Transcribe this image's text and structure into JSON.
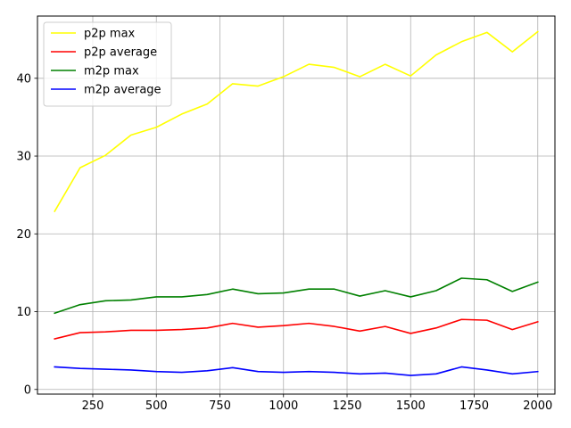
{
  "chart_data": {
    "type": "line",
    "title": "",
    "xlabel": "",
    "ylabel": "",
    "xlim": [
      32.5,
      2067.5
    ],
    "ylim": [
      -0.6,
      48.0
    ],
    "grid": true,
    "legend_position": "top-left",
    "x_ticks": [
      250,
      500,
      750,
      1000,
      1250,
      1500,
      1750,
      2000
    ],
    "y_ticks": [
      0,
      10,
      20,
      30,
      40
    ],
    "x": [
      100,
      200,
      300,
      400,
      500,
      600,
      700,
      800,
      900,
      1000,
      1100,
      1200,
      1300,
      1400,
      1500,
      1600,
      1700,
      1800,
      1900,
      2000
    ],
    "series": [
      {
        "name": "p2p max",
        "color": "#ffff00",
        "values": [
          22.9,
          28.5,
          30.1,
          32.7,
          33.7,
          35.4,
          36.7,
          39.3,
          39.0,
          40.2,
          41.8,
          41.4,
          40.2,
          41.8,
          40.3,
          43.0,
          44.7,
          45.9,
          43.4,
          46.0
        ]
      },
      {
        "name": "p2p average",
        "color": "#ff0000",
        "values": [
          6.5,
          7.3,
          7.4,
          7.6,
          7.6,
          7.7,
          7.9,
          8.5,
          8.0,
          8.2,
          8.5,
          8.1,
          7.5,
          8.1,
          7.2,
          7.9,
          9.0,
          8.9,
          7.7,
          8.7
        ]
      },
      {
        "name": "m2p max",
        "color": "#008000",
        "values": [
          9.8,
          10.9,
          11.4,
          11.5,
          11.9,
          11.9,
          12.2,
          12.9,
          12.3,
          12.4,
          12.9,
          12.9,
          12.0,
          12.7,
          11.9,
          12.7,
          14.3,
          14.1,
          12.6,
          13.8
        ]
      },
      {
        "name": "m2p average",
        "color": "#0000ff",
        "values": [
          2.9,
          2.7,
          2.6,
          2.5,
          2.3,
          2.2,
          2.4,
          2.8,
          2.3,
          2.2,
          2.3,
          2.2,
          2.0,
          2.1,
          1.8,
          2.0,
          2.9,
          2.5,
          2.0,
          2.3
        ]
      }
    ]
  }
}
